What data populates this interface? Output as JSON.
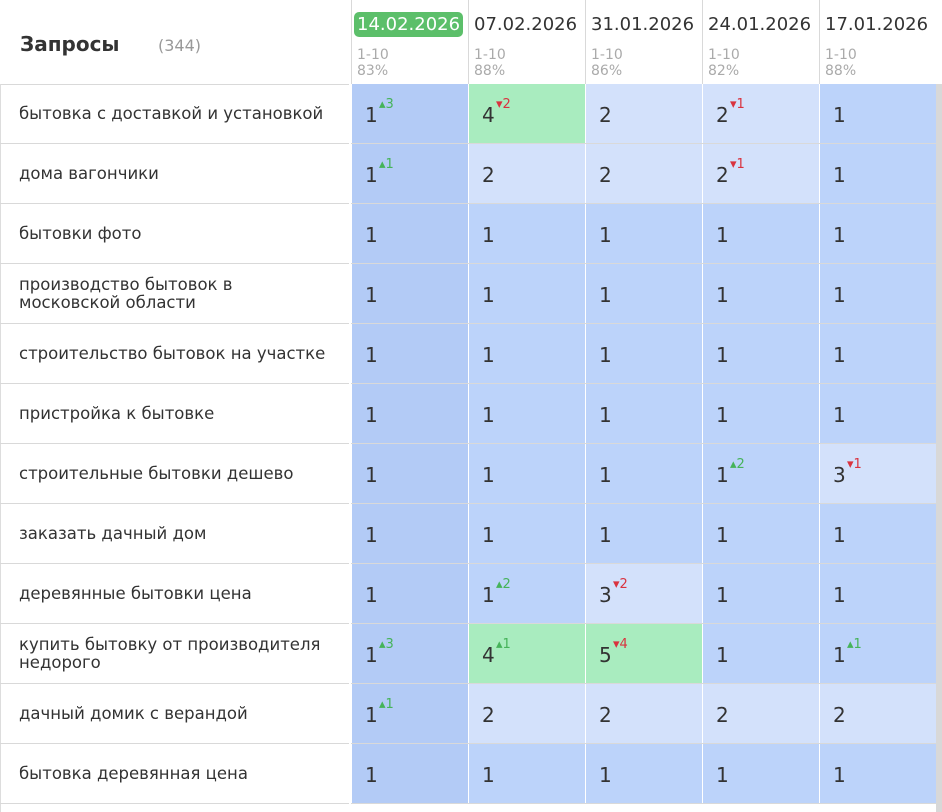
{
  "header": {
    "title": "Запросы",
    "count": "(344)"
  },
  "columns": [
    {
      "date": "14.02.2026",
      "range": "1-10",
      "pct": "83%",
      "current": true
    },
    {
      "date": "07.02.2026",
      "range": "1-10",
      "pct": "88%"
    },
    {
      "date": "31.01.2026",
      "range": "1-10",
      "pct": "86%"
    },
    {
      "date": "24.01.2026",
      "range": "1-10",
      "pct": "82%"
    },
    {
      "date": "17.01.2026",
      "range": "1-10",
      "pct": "88%"
    }
  ],
  "colors": {
    "pos1": "#bcd3fa",
    "pos1_current": "#b3cbf6",
    "pos2_3": "#d3e1fb",
    "improved": "#a9ecbf",
    "up": "#46b35a",
    "down": "#d9333f",
    "current_date": "#5cbf6a"
  },
  "rows": [
    {
      "query": "бытовка с доставкой и установкой",
      "cells": [
        {
          "v": "1",
          "d": "3",
          "dir": "up"
        },
        {
          "v": "4",
          "d": "2",
          "dir": "down",
          "hl": true
        },
        {
          "v": "2"
        },
        {
          "v": "2",
          "d": "1",
          "dir": "down"
        },
        {
          "v": "1"
        }
      ]
    },
    {
      "query": "дома вагончики",
      "cells": [
        {
          "v": "1",
          "d": "1",
          "dir": "up"
        },
        {
          "v": "2"
        },
        {
          "v": "2"
        },
        {
          "v": "2",
          "d": "1",
          "dir": "down"
        },
        {
          "v": "1"
        }
      ]
    },
    {
      "query": "бытовки фото",
      "cells": [
        {
          "v": "1"
        },
        {
          "v": "1"
        },
        {
          "v": "1"
        },
        {
          "v": "1"
        },
        {
          "v": "1"
        }
      ]
    },
    {
      "query": "производство бытовок в московской области",
      "cells": [
        {
          "v": "1"
        },
        {
          "v": "1"
        },
        {
          "v": "1"
        },
        {
          "v": "1"
        },
        {
          "v": "1"
        }
      ]
    },
    {
      "query": "строительство бытовок на участке",
      "cells": [
        {
          "v": "1"
        },
        {
          "v": "1"
        },
        {
          "v": "1"
        },
        {
          "v": "1"
        },
        {
          "v": "1"
        }
      ]
    },
    {
      "query": "пристройка к бытовке",
      "cells": [
        {
          "v": "1"
        },
        {
          "v": "1"
        },
        {
          "v": "1"
        },
        {
          "v": "1"
        },
        {
          "v": "1"
        }
      ]
    },
    {
      "query": "строительные бытовки дешево",
      "cells": [
        {
          "v": "1"
        },
        {
          "v": "1"
        },
        {
          "v": "1"
        },
        {
          "v": "1",
          "d": "2",
          "dir": "up"
        },
        {
          "v": "3",
          "d": "1",
          "dir": "down"
        }
      ]
    },
    {
      "query": "заказать дачный дом",
      "cells": [
        {
          "v": "1"
        },
        {
          "v": "1"
        },
        {
          "v": "1"
        },
        {
          "v": "1"
        },
        {
          "v": "1"
        }
      ]
    },
    {
      "query": "деревянные бытовки цена",
      "cells": [
        {
          "v": "1"
        },
        {
          "v": "1",
          "d": "2",
          "dir": "up"
        },
        {
          "v": "3",
          "d": "2",
          "dir": "down"
        },
        {
          "v": "1"
        },
        {
          "v": "1"
        }
      ]
    },
    {
      "query": "купить бытовку от производителя недорого",
      "cells": [
        {
          "v": "1",
          "d": "3",
          "dir": "up"
        },
        {
          "v": "4",
          "d": "1",
          "dir": "up",
          "hl": true
        },
        {
          "v": "5",
          "d": "4",
          "dir": "down",
          "hl": true
        },
        {
          "v": "1"
        },
        {
          "v": "1",
          "d": "1",
          "dir": "up"
        }
      ]
    },
    {
      "query": "дачный домик с верандой",
      "cells": [
        {
          "v": "1",
          "d": "1",
          "dir": "up"
        },
        {
          "v": "2"
        },
        {
          "v": "2"
        },
        {
          "v": "2"
        },
        {
          "v": "2"
        }
      ]
    },
    {
      "query": "бытовка деревянная цена",
      "cells": [
        {
          "v": "1"
        },
        {
          "v": "1"
        },
        {
          "v": "1"
        },
        {
          "v": "1"
        },
        {
          "v": "1"
        }
      ]
    }
  ]
}
